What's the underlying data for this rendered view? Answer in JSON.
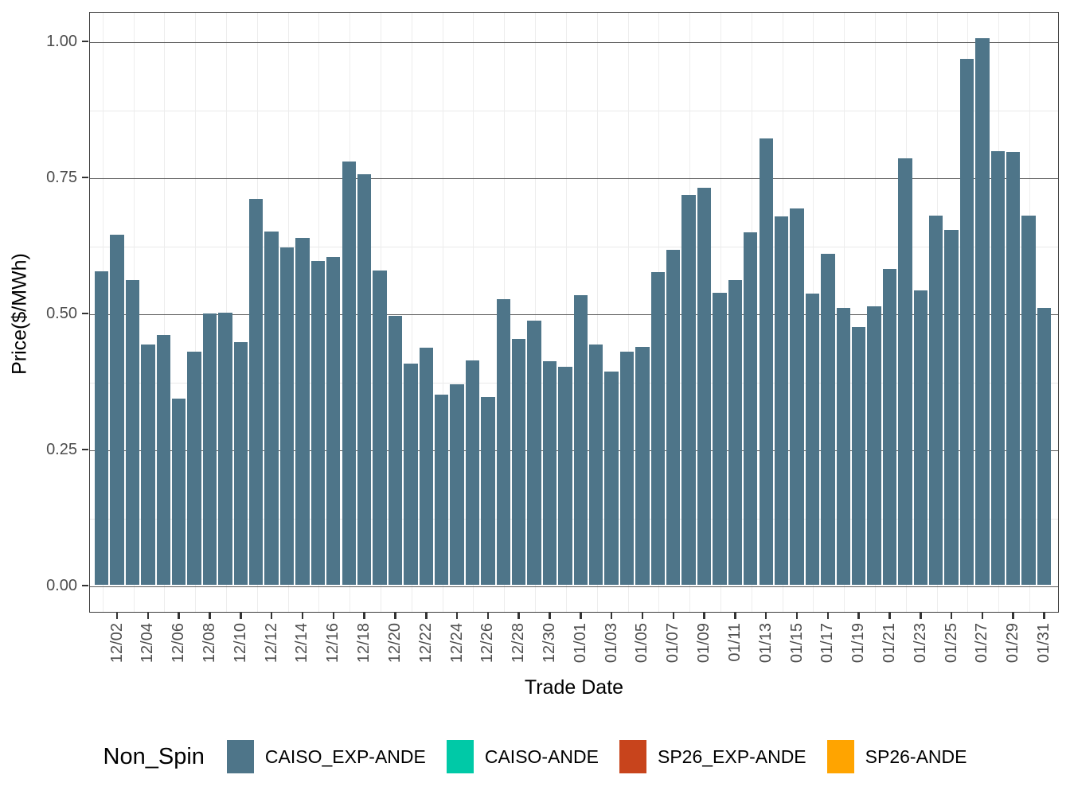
{
  "chart_data": {
    "type": "bar",
    "title": "",
    "xlabel": "Trade Date",
    "ylabel": "Price($/MWh)",
    "ylim": [
      -0.05,
      1.054
    ],
    "grid": "major and minor horizontal gridlines, minor vertical gridlines",
    "legend_position": "bottom",
    "bar_color": "#4e7589",
    "x": [
      "12/01",
      "12/02",
      "12/03",
      "12/04",
      "12/05",
      "12/06",
      "12/07",
      "12/08",
      "12/09",
      "12/10",
      "12/11",
      "12/12",
      "12/13",
      "12/14",
      "12/15",
      "12/16",
      "12/17",
      "12/18",
      "12/19",
      "12/20",
      "12/21",
      "12/22",
      "12/23",
      "12/24",
      "12/25",
      "12/26",
      "12/27",
      "12/28",
      "12/29",
      "12/30",
      "12/31",
      "01/01",
      "01/02",
      "01/03",
      "01/04",
      "01/05",
      "01/06",
      "01/07",
      "01/08",
      "01/09",
      "01/10",
      "01/11",
      "01/12",
      "01/13",
      "01/14",
      "01/15",
      "01/16",
      "01/17",
      "01/18",
      "01/19",
      "01/20",
      "01/21",
      "01/22",
      "01/23",
      "01/24",
      "01/25",
      "01/26",
      "01/27",
      "01/28",
      "01/29",
      "01/30",
      "01/31"
    ],
    "series": [
      {
        "name": "CAISO_EXP-ANDE",
        "color": "#4e7589",
        "values": [
          0.576,
          0.643,
          0.56,
          0.441,
          0.459,
          0.342,
          0.429,
          0.499,
          0.5,
          0.446,
          0.709,
          0.649,
          0.62,
          0.638,
          0.595,
          0.603,
          0.778,
          0.755,
          0.577,
          0.494,
          0.406,
          0.435,
          0.35,
          0.368,
          0.413,
          0.345,
          0.525,
          0.452,
          0.485,
          0.411,
          0.4,
          0.532,
          0.441,
          0.392,
          0.429,
          0.437,
          0.575,
          0.616,
          0.717,
          0.73,
          0.536,
          0.56,
          0.648,
          0.82,
          0.677,
          0.691,
          0.535,
          0.608,
          0.509,
          0.473,
          0.511,
          0.581,
          0.783,
          0.541,
          0.678,
          0.652,
          0.966,
          1.004,
          0.797,
          0.796,
          0.678,
          0.509
        ]
      }
    ],
    "y_ticks": [
      {
        "label": "0.00",
        "value": 0.0
      },
      {
        "label": "0.25",
        "value": 0.25
      },
      {
        "label": "0.50",
        "value": 0.5
      },
      {
        "label": "0.75",
        "value": 0.75
      },
      {
        "label": "1.00",
        "value": 1.0
      }
    ],
    "y_minor_values": [
      0.125,
      0.375,
      0.625,
      0.875
    ],
    "x_tick_labels": [
      "12/02",
      "12/04",
      "12/06",
      "12/08",
      "12/10",
      "12/12",
      "12/14",
      "12/16",
      "12/18",
      "12/20",
      "12/22",
      "12/24",
      "12/26",
      "12/28",
      "12/30",
      "01/01",
      "01/03",
      "01/05",
      "01/07",
      "01/09",
      "01/11",
      "01/13",
      "01/15",
      "01/17",
      "01/19",
      "01/21",
      "01/23",
      "01/25",
      "01/27",
      "01/29",
      "01/31"
    ],
    "legend": {
      "title": "Non_Spin",
      "entries": [
        {
          "label": "CAISO_EXP-ANDE",
          "color": "#4e7589"
        },
        {
          "label": "CAISO-ANDE",
          "color": "#00c9a7"
        },
        {
          "label": "SP26_EXP-ANDE",
          "color": "#c8441c"
        },
        {
          "label": "SP26-ANDE",
          "color": "#ffa400"
        }
      ]
    }
  }
}
